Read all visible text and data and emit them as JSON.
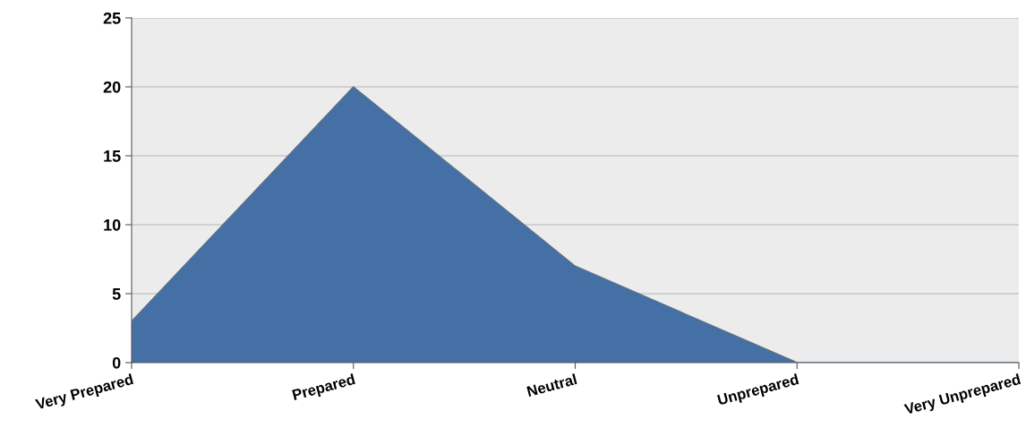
{
  "chart_data": {
    "type": "area",
    "categories": [
      "Very Prepared",
      "Prepared",
      "Neutral",
      "Unprepared",
      "Very Unprepared"
    ],
    "series": [
      {
        "color": "#4470a5",
        "values": [
          3,
          20,
          7,
          0,
          0
        ]
      }
    ],
    "ylim": [
      0,
      25
    ],
    "yticks": [
      0,
      5,
      10,
      15,
      20,
      25
    ],
    "grid": "y"
  }
}
